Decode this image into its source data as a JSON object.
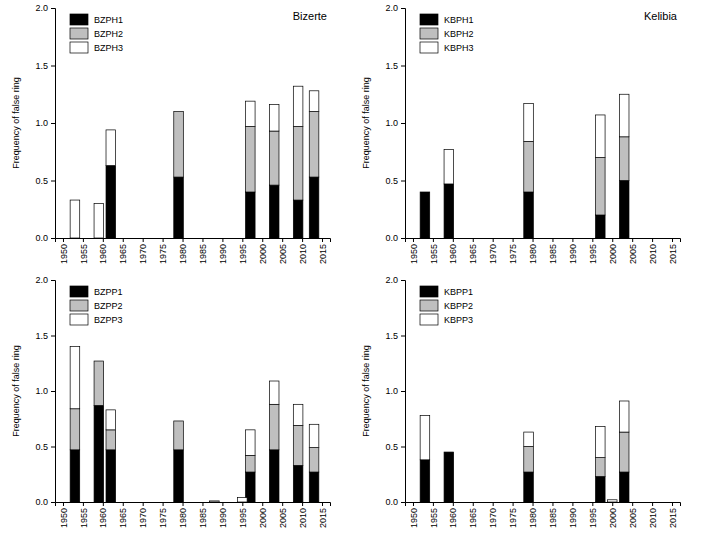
{
  "chart_data": [
    {
      "type": "bar",
      "stacked": true,
      "title": "Bizerte",
      "y_label": "Frequency of false ring",
      "legend": "upper left",
      "x": [
        1953,
        1959,
        1962,
        1979,
        1997,
        2003,
        2009,
        2013
      ],
      "series": [
        {
          "name": "BZPH1",
          "color": "#000000",
          "values": [
            null,
            null,
            0.63,
            0.53,
            0.4,
            0.46,
            0.33,
            0.53
          ]
        },
        {
          "name": "BZPH2",
          "color": "#bfbfbf",
          "values": [
            null,
            null,
            null,
            0.57,
            0.57,
            0.47,
            0.64,
            0.57
          ]
        },
        {
          "name": "BZPH3",
          "color": "#ffffff",
          "values": [
            0.33,
            0.3,
            0.31,
            null,
            0.22,
            0.23,
            0.35,
            0.18
          ]
        }
      ],
      "xlim": [
        1948,
        2017
      ],
      "xticks": [
        1950,
        1955,
        1960,
        1965,
        1970,
        1975,
        1980,
        1985,
        1990,
        1995,
        2000,
        2005,
        2010,
        2015
      ],
      "ylim": [
        0,
        2
      ],
      "yticks": [
        {
          "value": 0,
          "label": "0.0"
        },
        {
          "value": 0.5,
          "label": "0.5"
        },
        {
          "value": 1,
          "label": "1.0"
        },
        {
          "value": 1.5,
          "label": "1.5"
        },
        {
          "value": 2,
          "label": "2.0"
        }
      ]
    },
    {
      "type": "bar",
      "stacked": true,
      "title": "Kelibia",
      "y_label": "Frequency of false ring",
      "legend": "upper left",
      "x": [
        1953,
        1959,
        1979,
        1997,
        2003
      ],
      "series": [
        {
          "name": "KBPH1",
          "color": "#000000",
          "values": [
            0.4,
            0.47,
            0.4,
            0.2,
            0.5
          ]
        },
        {
          "name": "KBPH2",
          "color": "#bfbfbf",
          "values": [
            null,
            null,
            0.44,
            0.5,
            0.38
          ]
        },
        {
          "name": "KBPH3",
          "color": "#ffffff",
          "values": [
            null,
            0.3,
            0.33,
            0.37,
            0.37
          ]
        }
      ],
      "xlim": [
        1948,
        2017
      ],
      "xticks": [
        1950,
        1955,
        1960,
        1965,
        1970,
        1975,
        1980,
        1985,
        1990,
        1995,
        2000,
        2005,
        2010,
        2015
      ],
      "ylim": [
        0,
        2
      ],
      "yticks": [
        {
          "value": 0,
          "label": "0.0"
        },
        {
          "value": 0.5,
          "label": "0.5"
        },
        {
          "value": 1,
          "label": "1.0"
        },
        {
          "value": 1.5,
          "label": "1.5"
        },
        {
          "value": 2,
          "label": "2.0"
        }
      ]
    },
    {
      "type": "bar",
      "stacked": true,
      "y_label": "Frequency of false ring",
      "legend": "upper left",
      "x": [
        1953,
        1959,
        1962,
        1979,
        1988,
        1995,
        1997,
        2003,
        2009,
        2013
      ],
      "series": [
        {
          "name": "BZPP1",
          "color": "#000000",
          "values": [
            0.47,
            0.87,
            0.47,
            0.47,
            null,
            null,
            0.27,
            0.47,
            0.33,
            0.27
          ]
        },
        {
          "name": "BZPP2",
          "color": "#bfbfbf",
          "values": [
            0.37,
            0.4,
            0.18,
            0.26,
            null,
            null,
            0.15,
            0.41,
            0.36,
            0.22
          ]
        },
        {
          "name": "BZPP3",
          "color": "#ffffff",
          "values": [
            0.56,
            null,
            0.18,
            null,
            0.01,
            0.04,
            0.23,
            0.21,
            0.19,
            0.21
          ]
        }
      ],
      "xlim": [
        1948,
        2017
      ],
      "xticks": [
        1950,
        1955,
        1960,
        1965,
        1970,
        1975,
        1980,
        1985,
        1990,
        1995,
        2000,
        2005,
        2010,
        2015
      ],
      "ylim": [
        0,
        2
      ],
      "yticks": [
        {
          "value": 0,
          "label": "0.0"
        },
        {
          "value": 0.5,
          "label": "0.5"
        },
        {
          "value": 1,
          "label": "1.0"
        },
        {
          "value": 1.5,
          "label": "1.5"
        },
        {
          "value": 2,
          "label": "2.0"
        }
      ]
    },
    {
      "type": "bar",
      "stacked": true,
      "y_label": "Frequency of false ring",
      "legend": "upper left",
      "x": [
        1953,
        1959,
        1979,
        1997,
        2000,
        2003
      ],
      "series": [
        {
          "name": "KBPP1",
          "color": "#000000",
          "values": [
            0.38,
            0.45,
            0.27,
            0.23,
            null,
            0.27
          ]
        },
        {
          "name": "KBPP2",
          "color": "#bfbfbf",
          "values": [
            null,
            null,
            0.23,
            0.17,
            null,
            0.36
          ]
        },
        {
          "name": "KBPP3",
          "color": "#ffffff",
          "values": [
            0.4,
            null,
            0.13,
            0.28,
            0.02,
            0.28
          ]
        }
      ],
      "xlim": [
        1948,
        2017
      ],
      "xticks": [
        1950,
        1955,
        1960,
        1965,
        1970,
        1975,
        1980,
        1985,
        1990,
        1995,
        2000,
        2005,
        2010,
        2015
      ],
      "ylim": [
        0,
        2
      ],
      "yticks": [
        {
          "value": 0,
          "label": "0.0"
        },
        {
          "value": 0.5,
          "label": "0.5"
        },
        {
          "value": 1,
          "label": "1.0"
        },
        {
          "value": 1.5,
          "label": "1.5"
        },
        {
          "value": 2,
          "label": "2.0"
        }
      ]
    }
  ]
}
